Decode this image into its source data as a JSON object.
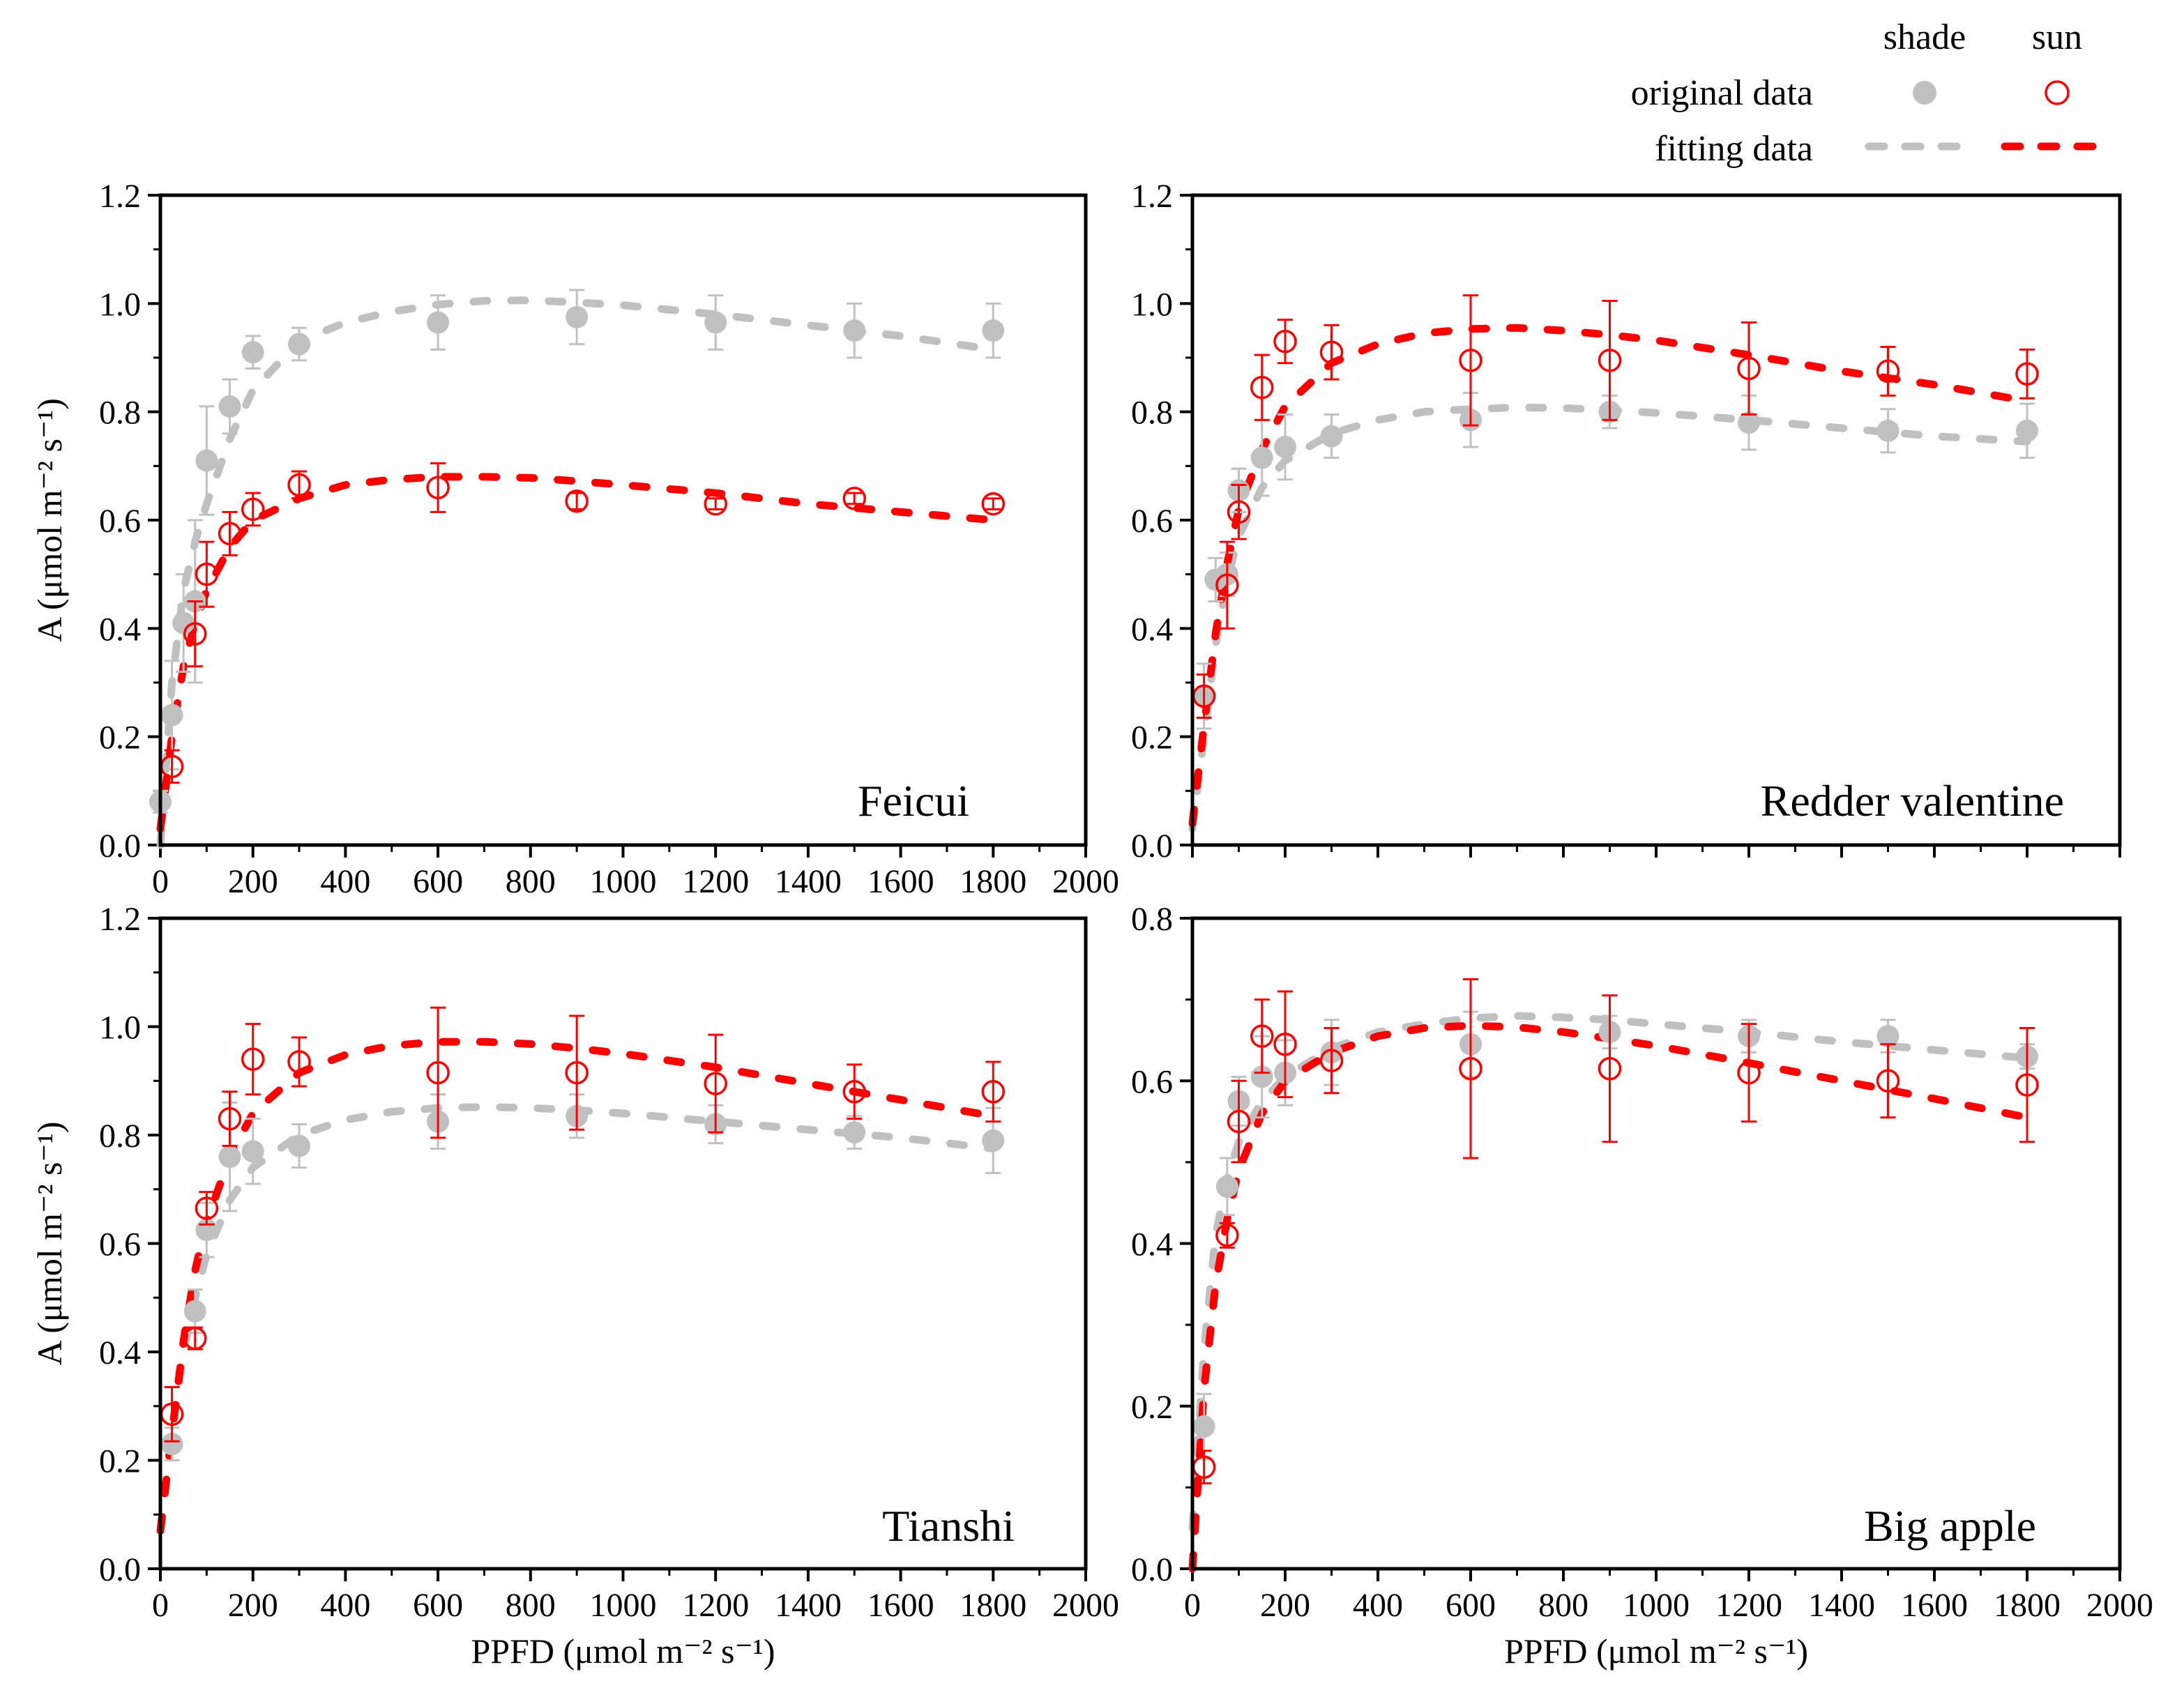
{
  "legend": {
    "col_shade": "shade",
    "col_sun": "sun",
    "row_original": "original data",
    "row_fitting": "fitting data",
    "shade_color": "#c0c0c0",
    "sun_color": "#ff0000"
  },
  "chart_data": [
    {
      "type": "scatter",
      "name": "Feicui",
      "label": "Feicui",
      "xlabel": "",
      "ylabel": "A (μmol m⁻² s⁻¹)",
      "xlim": [
        0,
        2000
      ],
      "ylim": [
        0,
        1.2
      ],
      "xticks": [
        0,
        200,
        400,
        600,
        800,
        1000,
        1200,
        1400,
        1600,
        1800,
        2000
      ],
      "xtick_labels": [
        "0",
        "200",
        "400",
        "600",
        "800",
        "1000",
        "1200",
        "1400",
        "1600",
        "1800",
        "2000"
      ],
      "yticks": [
        0,
        0.2,
        0.4,
        0.6,
        0.8,
        1.0,
        1.2
      ],
      "ytick_labels": [
        "0.0",
        "0.2",
        "0.4",
        "0.6",
        "0.8",
        "1.0",
        "1.2"
      ],
      "series": [
        {
          "name": "shade original data",
          "x": [
            0,
            25,
            50,
            75,
            100,
            150,
            200,
            300,
            600,
            900,
            1200,
            1500,
            1800
          ],
          "y": [
            0.08,
            0.24,
            0.41,
            0.45,
            0.71,
            0.81,
            0.91,
            0.925,
            0.965,
            0.975,
            0.965,
            0.95,
            0.95
          ],
          "err": [
            0.02,
            0.1,
            0.09,
            0.15,
            0.1,
            0.05,
            0.03,
            0.03,
            0.05,
            0.05,
            0.05,
            0.05,
            0.05
          ]
        },
        {
          "name": "sun original data",
          "x": [
            25,
            75,
            100,
            150,
            200,
            300,
            600,
            900,
            1200,
            1500,
            1800
          ],
          "y": [
            0.145,
            0.39,
            0.5,
            0.575,
            0.62,
            0.665,
            0.66,
            0.635,
            0.63,
            0.64,
            0.63
          ],
          "err": [
            0.03,
            0.06,
            0.06,
            0.04,
            0.03,
            0.025,
            0.045,
            0.015,
            0.01,
            0.01,
            0.01
          ]
        },
        {
          "name": "shade fitting data",
          "x": [
            0,
            25,
            50,
            75,
            100,
            150,
            200,
            300,
            400,
            500,
            600,
            700,
            800,
            900,
            1000,
            1200,
            1400,
            1600,
            1800
          ],
          "y": [
            0.0,
            0.3,
            0.47,
            0.56,
            0.63,
            0.75,
            0.84,
            0.93,
            0.965,
            0.985,
            0.998,
            1.005,
            1.006,
            1.002,
            0.997,
            0.98,
            0.96,
            0.94,
            0.915
          ]
        },
        {
          "name": "sun fitting data",
          "x": [
            0,
            25,
            50,
            75,
            100,
            150,
            200,
            300,
            400,
            500,
            600,
            700,
            800,
            900,
            1000,
            1200,
            1400,
            1600,
            1800
          ],
          "y": [
            0.03,
            0.2,
            0.33,
            0.41,
            0.47,
            0.55,
            0.6,
            0.64,
            0.665,
            0.675,
            0.68,
            0.68,
            0.678,
            0.672,
            0.665,
            0.65,
            0.63,
            0.615,
            0.6
          ]
        }
      ]
    },
    {
      "type": "scatter",
      "name": "Redder valentine",
      "label": "Redder valentine",
      "xlabel": "",
      "ylabel": "",
      "xlim": [
        0,
        2000
      ],
      "ylim": [
        0,
        1.2
      ],
      "xticks": [
        0,
        200,
        400,
        600,
        800,
        1000,
        1200,
        1400,
        1600,
        1800,
        2000
      ],
      "xtick_labels": [],
      "yticks": [
        0,
        0.2,
        0.4,
        0.6,
        0.8,
        1.0,
        1.2
      ],
      "ytick_labels": [
        "0.0",
        "0.2",
        "0.4",
        "0.6",
        "0.8",
        "1.0",
        "1.2"
      ],
      "series": [
        {
          "name": "shade original data",
          "x": [
            25,
            50,
            75,
            100,
            150,
            200,
            300,
            600,
            900,
            1200,
            1500,
            1800
          ],
          "y": [
            0.275,
            0.49,
            0.5,
            0.655,
            0.715,
            0.735,
            0.755,
            0.785,
            0.8,
            0.78,
            0.765,
            0.765
          ],
          "err": [
            0.06,
            0.04,
            0.04,
            0.04,
            0.07,
            0.06,
            0.04,
            0.05,
            0.03,
            0.05,
            0.04,
            0.05
          ]
        },
        {
          "name": "sun original data",
          "x": [
            25,
            75,
            100,
            150,
            200,
            300,
            600,
            900,
            1200,
            1500,
            1800
          ],
          "y": [
            0.275,
            0.48,
            0.615,
            0.845,
            0.93,
            0.91,
            0.895,
            0.895,
            0.88,
            0.875,
            0.87
          ],
          "err": [
            0.04,
            0.08,
            0.05,
            0.06,
            0.04,
            0.05,
            0.12,
            0.11,
            0.085,
            0.045,
            0.045
          ]
        },
        {
          "name": "shade fitting data",
          "x": [
            0,
            25,
            50,
            75,
            100,
            150,
            200,
            300,
            400,
            500,
            600,
            700,
            800,
            900,
            1000,
            1200,
            1400,
            1600,
            1800
          ],
          "y": [
            0.03,
            0.2,
            0.37,
            0.49,
            0.57,
            0.66,
            0.71,
            0.76,
            0.785,
            0.8,
            0.805,
            0.808,
            0.807,
            0.803,
            0.798,
            0.785,
            0.77,
            0.755,
            0.745
          ]
        },
        {
          "name": "sun fitting data",
          "x": [
            0,
            25,
            50,
            75,
            100,
            150,
            200,
            300,
            400,
            500,
            600,
            700,
            800,
            900,
            1000,
            1200,
            1400,
            1600,
            1800
          ],
          "y": [
            0.04,
            0.22,
            0.39,
            0.52,
            0.62,
            0.73,
            0.81,
            0.89,
            0.925,
            0.945,
            0.953,
            0.955,
            0.95,
            0.942,
            0.932,
            0.905,
            0.875,
            0.85,
            0.82
          ]
        }
      ]
    },
    {
      "type": "scatter",
      "name": "Tianshi",
      "label": "Tianshi",
      "xlabel": "PPFD (μmol m⁻² s⁻¹)",
      "ylabel": "A (μmol m⁻² s⁻¹)",
      "xlim": [
        0,
        2000
      ],
      "ylim": [
        0,
        1.2
      ],
      "xticks": [
        0,
        200,
        400,
        600,
        800,
        1000,
        1200,
        1400,
        1600,
        1800,
        2000
      ],
      "xtick_labels": [
        "0",
        "200",
        "400",
        "600",
        "800",
        "1000",
        "1200",
        "1400",
        "1600",
        "1800",
        "2000"
      ],
      "yticks": [
        0,
        0.2,
        0.4,
        0.6,
        0.8,
        1.0,
        1.2
      ],
      "ytick_labels": [
        "0.0",
        "0.2",
        "0.4",
        "0.6",
        "0.8",
        "1.0",
        "1.2"
      ],
      "series": [
        {
          "name": "shade original data",
          "x": [
            25,
            75,
            100,
            150,
            200,
            300,
            600,
            900,
            1200,
            1500,
            1800
          ],
          "y": [
            0.23,
            0.475,
            0.625,
            0.76,
            0.77,
            0.78,
            0.825,
            0.835,
            0.82,
            0.805,
            0.79
          ],
          "err": [
            0.03,
            0.04,
            0.05,
            0.1,
            0.06,
            0.04,
            0.05,
            0.04,
            0.035,
            0.03,
            0.06
          ]
        },
        {
          "name": "sun original data",
          "x": [
            25,
            75,
            100,
            150,
            200,
            300,
            600,
            900,
            1200,
            1500,
            1800
          ],
          "y": [
            0.285,
            0.425,
            0.665,
            0.83,
            0.94,
            0.935,
            0.915,
            0.915,
            0.895,
            0.88,
            0.88
          ],
          "err": [
            0.05,
            0.02,
            0.03,
            0.05,
            0.065,
            0.045,
            0.12,
            0.105,
            0.09,
            0.05,
            0.055
          ]
        },
        {
          "name": "shade fitting data",
          "x": [
            0,
            25,
            50,
            75,
            100,
            150,
            200,
            300,
            400,
            500,
            600,
            700,
            800,
            900,
            1000,
            1200,
            1400,
            1600,
            1800
          ],
          "y": [
            0.07,
            0.25,
            0.4,
            0.5,
            0.58,
            0.68,
            0.74,
            0.8,
            0.828,
            0.843,
            0.85,
            0.852,
            0.85,
            0.846,
            0.84,
            0.825,
            0.81,
            0.795,
            0.775
          ]
        },
        {
          "name": "sun fitting data",
          "x": [
            0,
            25,
            50,
            75,
            100,
            150,
            200,
            300,
            400,
            500,
            600,
            700,
            800,
            900,
            1000,
            1200,
            1400,
            1600,
            1800
          ],
          "y": [
            0.07,
            0.25,
            0.42,
            0.55,
            0.64,
            0.76,
            0.84,
            0.915,
            0.948,
            0.965,
            0.972,
            0.972,
            0.968,
            0.96,
            0.95,
            0.925,
            0.895,
            0.865,
            0.835
          ]
        }
      ]
    },
    {
      "type": "scatter",
      "name": "Big apple",
      "label": "Big apple",
      "xlabel": "PPFD (μmol m⁻² s⁻¹)",
      "ylabel": "",
      "xlim": [
        0,
        2000
      ],
      "ylim": [
        0,
        0.8
      ],
      "xticks": [
        0,
        200,
        400,
        600,
        800,
        1000,
        1200,
        1400,
        1600,
        1800,
        2000
      ],
      "xtick_labels": [
        "0",
        "200",
        "400",
        "600",
        "800",
        "1000",
        "1200",
        "1400",
        "1600",
        "1800",
        "2000"
      ],
      "yticks": [
        0,
        0.2,
        0.4,
        0.6,
        0.8
      ],
      "ytick_labels": [
        "0.0",
        "0.2",
        "0.4",
        "0.6",
        "0.8"
      ],
      "series": [
        {
          "name": "shade original data",
          "x": [
            25,
            75,
            100,
            150,
            200,
            300,
            600,
            900,
            1200,
            1500,
            1800
          ],
          "y": [
            0.175,
            0.47,
            0.575,
            0.605,
            0.61,
            0.635,
            0.645,
            0.66,
            0.655,
            0.655,
            0.63
          ],
          "err": [
            0.04,
            0.035,
            0.03,
            0.05,
            0.04,
            0.04,
            0.04,
            0.02,
            0.02,
            0.02,
            0.015
          ]
        },
        {
          "name": "sun original data",
          "x": [
            25,
            75,
            100,
            150,
            200,
            300,
            600,
            900,
            1200,
            1500,
            1800
          ],
          "y": [
            0.125,
            0.41,
            0.55,
            0.655,
            0.645,
            0.625,
            0.615,
            0.615,
            0.61,
            0.6,
            0.595
          ],
          "err": [
            0.02,
            0.015,
            0.05,
            0.045,
            0.065,
            0.04,
            0.11,
            0.09,
            0.06,
            0.045,
            0.07
          ]
        },
        {
          "name": "shade fitting data",
          "x": [
            0,
            25,
            50,
            75,
            100,
            150,
            200,
            300,
            400,
            500,
            600,
            700,
            800,
            900,
            1000,
            1200,
            1400,
            1600,
            1800
          ],
          "y": [
            0.05,
            0.27,
            0.41,
            0.48,
            0.525,
            0.575,
            0.605,
            0.64,
            0.66,
            0.67,
            0.677,
            0.68,
            0.678,
            0.675,
            0.67,
            0.66,
            0.648,
            0.638,
            0.628
          ]
        },
        {
          "name": "sun fitting data",
          "x": [
            0,
            25,
            50,
            75,
            100,
            150,
            200,
            300,
            400,
            500,
            600,
            700,
            800,
            900,
            1000,
            1200,
            1400,
            1600,
            1800
          ],
          "y": [
            0.0,
            0.22,
            0.35,
            0.43,
            0.49,
            0.56,
            0.6,
            0.635,
            0.655,
            0.665,
            0.668,
            0.666,
            0.66,
            0.652,
            0.643,
            0.622,
            0.6,
            0.578,
            0.555
          ]
        }
      ]
    }
  ]
}
